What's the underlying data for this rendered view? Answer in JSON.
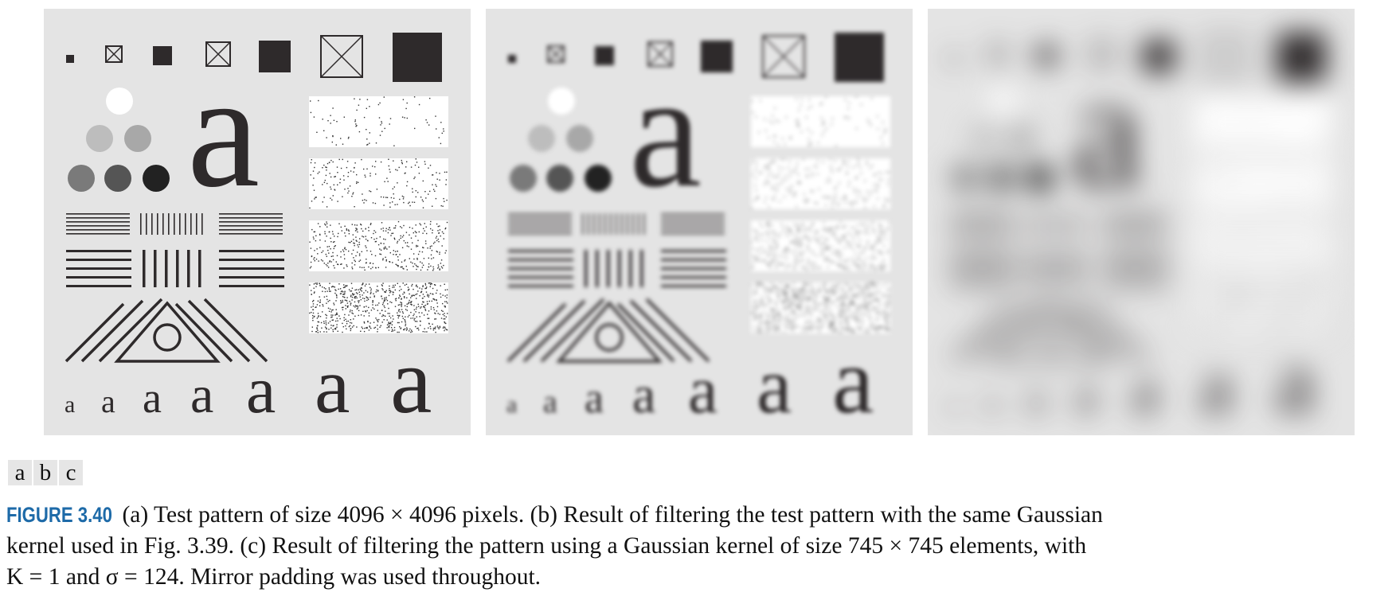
{
  "panels": [
    {
      "id": "a",
      "filter": "none"
    },
    {
      "id": "b",
      "filter": "gaussian-small"
    },
    {
      "id": "c",
      "filter": "gaussian-large"
    }
  ],
  "test_pattern": {
    "background_color": "#e4e4e4",
    "ink_color": "#2e2a2b",
    "letter": "a"
  },
  "subfigure_labels": [
    "a",
    "b",
    "c"
  ],
  "caption": {
    "label": "FIGURE 3.40",
    "line1": " (a) Test pattern of size 4096 × 4096 pixels. (b) Result of filtering the test pattern with the same Gaussian",
    "line2": "kernel used in Fig. 3.39. (c) Result of filtering the pattern using a Gaussian kernel of size 745 × 745 elements, with",
    "line3": "K = 1 and σ = 124. Mirror padding was used throughout."
  }
}
